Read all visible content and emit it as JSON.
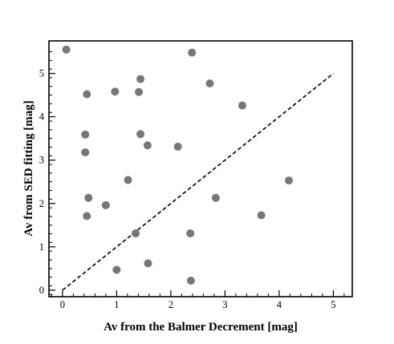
{
  "chart_data": {
    "type": "scatter",
    "xlabel": "Av from the Balmer Decrement [mag]",
    "ylabel": "Av from SED fitting [mag]",
    "xlim": [
      -0.25,
      5.35
    ],
    "ylim": [
      -0.15,
      5.75
    ],
    "xticks": [
      0,
      1,
      2,
      3,
      4,
      5
    ],
    "yticks": [
      0,
      1,
      2,
      3,
      4,
      5
    ],
    "x_tick_labels": [
      "0",
      "1",
      "2",
      "3",
      "4",
      "5"
    ],
    "y_tick_labels": [
      "0",
      "1",
      "2",
      "3",
      "4",
      "5"
    ],
    "grid": false,
    "reference_line": {
      "style": "dashed",
      "from": [
        0,
        0
      ],
      "to": [
        5,
        5
      ]
    },
    "marker_color": "#777777",
    "points": [
      [
        0.07,
        5.55
      ],
      [
        0.45,
        4.52
      ],
      [
        0.97,
        4.58
      ],
      [
        1.44,
        4.87
      ],
      [
        1.41,
        4.57
      ],
      [
        2.39,
        5.48
      ],
      [
        2.72,
        4.77
      ],
      [
        3.32,
        4.26
      ],
      [
        0.42,
        3.59
      ],
      [
        0.42,
        3.18
      ],
      [
        1.44,
        3.6
      ],
      [
        1.57,
        3.34
      ],
      [
        2.13,
        3.31
      ],
      [
        1.21,
        2.54
      ],
      [
        0.48,
        2.13
      ],
      [
        0.45,
        1.71
      ],
      [
        0.8,
        1.96
      ],
      [
        2.83,
        2.13
      ],
      [
        3.67,
        1.73
      ],
      [
        4.18,
        2.53
      ],
      [
        1.35,
        1.31
      ],
      [
        2.36,
        1.31
      ],
      [
        1.0,
        0.47
      ],
      [
        1.58,
        0.62
      ],
      [
        2.37,
        0.22
      ]
    ]
  }
}
